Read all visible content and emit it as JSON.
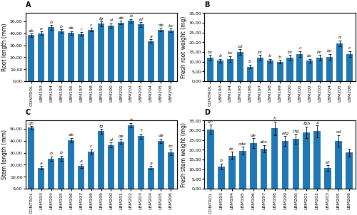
{
  "chart_data": [
    {
      "type": "bar",
      "title": "A",
      "y_label": "Root length (mm)",
      "categories": [
        "CONTROL",
        "LBM193",
        "LBM194",
        "LBM195",
        "LBM196",
        "LBM197",
        "LBM198",
        "LBM199",
        "LBM200",
        "LBM201",
        "LBM202",
        "LBM203",
        "LBM204",
        "LBM205",
        "LBM206"
      ],
      "values": [
        38.5,
        40.0,
        45.0,
        42.0,
        40.5,
        39.5,
        43.0,
        48.0,
        46.5,
        49.0,
        50.5,
        47.5,
        33.5,
        43.0,
        42.5
      ],
      "errors": [
        1.5,
        1.5,
        2.0,
        1.5,
        1.5,
        1.5,
        1.5,
        2.0,
        2.0,
        1.5,
        1.5,
        2.0,
        1.5,
        1.5,
        1.5
      ],
      "annotations": [
        "ab",
        "e",
        "b",
        "b",
        "de",
        "r",
        "c",
        "fg",
        "d",
        "de",
        "b",
        "ef",
        "a",
        "de",
        "bc"
      ],
      "ylim": [
        0,
        57
      ],
      "yticks": [
        {
          "value": 0,
          "label": "0,00"
        },
        {
          "value": 10,
          "label": "10,00"
        },
        {
          "value": 20,
          "label": "20,00"
        },
        {
          "value": 30,
          "label": "30,00"
        },
        {
          "value": 40,
          "label": "40,00"
        },
        {
          "value": 50,
          "label": "50,00"
        }
      ]
    },
    {
      "type": "bar",
      "title": "B",
      "y_label": "Fresh root weight (mg)",
      "categories": [
        "CONTROL",
        "LBM193",
        "LBM194",
        "LBM195",
        "LBM196",
        "LBM197",
        "LBM198",
        "LBM199",
        "LBM200",
        "LBM201",
        "LBM202",
        "LBM203",
        "LBM204",
        "LBM205",
        "LBM206"
      ],
      "values": [
        12.0,
        10.5,
        11.5,
        15.0,
        7.5,
        12.0,
        10.5,
        10.0,
        12.0,
        14.0,
        10.5,
        12.0,
        12.5,
        19.5,
        14.0
      ],
      "errors": [
        1.5,
        1.0,
        1.5,
        1.5,
        1.0,
        1.5,
        1.0,
        1.0,
        1.5,
        1.5,
        1.0,
        1.5,
        1.5,
        1.5,
        1.5
      ],
      "annotations": [
        "bc",
        "b",
        "bc",
        "cd",
        "b",
        "bc",
        "b",
        "b",
        "bc",
        "c",
        "bc",
        "bc",
        "bc",
        "d",
        "c"
      ],
      "ylim": [
        0,
        35
      ],
      "yticks": [
        {
          "value": 0,
          "label": "0,00"
        },
        {
          "value": 5,
          "label": "5,00"
        },
        {
          "value": 10,
          "label": "10,00"
        },
        {
          "value": 15,
          "label": "15,00"
        },
        {
          "value": 20,
          "label": "20,00"
        },
        {
          "value": 25,
          "label": "25,00"
        },
        {
          "value": 30,
          "label": "30,00"
        },
        {
          "value": 35,
          "label": "35,00"
        }
      ]
    },
    {
      "type": "bar",
      "title": "C",
      "y_label": "Stem length (mm)",
      "categories": [
        "CONTROL",
        "LBM193",
        "LBM194",
        "LBM195",
        "LBM196",
        "LBM197",
        "LBM198",
        "LBM199",
        "LBM200",
        "LBM201",
        "LBM202",
        "LBM203",
        "LBM204",
        "LBM205",
        "LBM206"
      ],
      "values": [
        51.0,
        17.5,
        25.0,
        25.5,
        40.5,
        19.0,
        31.0,
        48.0,
        36.5,
        39.5,
        53.0,
        44.0,
        17.5,
        40.0,
        30.5
      ],
      "errors": [
        1.5,
        1.5,
        2.0,
        2.0,
        2.0,
        1.5,
        2.0,
        2.0,
        2.0,
        2.0,
        2.0,
        2.0,
        1.5,
        2.0,
        2.5
      ],
      "annotations": [
        "gh",
        "a",
        "b",
        "b",
        "de",
        "a",
        "c",
        "fg",
        "d",
        "de",
        "h",
        "f",
        "a",
        "de",
        "bc"
      ],
      "ylim": [
        0,
        57
      ],
      "yticks": [
        {
          "value": 0,
          "label": "0,00"
        },
        {
          "value": 10,
          "label": "10,00"
        },
        {
          "value": 20,
          "label": "20,00"
        },
        {
          "value": 30,
          "label": "30,00"
        },
        {
          "value": 40,
          "label": "40,00"
        },
        {
          "value": 50,
          "label": "50,00"
        }
      ]
    },
    {
      "type": "bar",
      "title": "D",
      "y_label": "Fresh stem weight (mg)",
      "categories": [
        "CONTROL",
        "LBM193",
        "LBM194",
        "LBM195",
        "LBM196",
        "LBM197",
        "LBM198",
        "LBM199",
        "LBM200",
        "LBM201",
        "LBM202",
        "LBM203",
        "LBM205",
        "LBM206"
      ],
      "values": [
        30.5,
        11.5,
        17.0,
        19.5,
        23.5,
        20.5,
        31.0,
        24.5,
        25.5,
        29.0,
        29.5,
        10.5,
        24.5,
        18.5
      ],
      "errors": [
        2.5,
        1.5,
        2.0,
        2.0,
        2.5,
        2.0,
        3.5,
        2.5,
        2.5,
        3.0,
        3.0,
        1.5,
        3.0,
        2.0
      ],
      "annotations": [
        "gh",
        "b",
        "bc",
        "cde",
        "de",
        "abc",
        "h",
        "efg",
        "cfg",
        "fgh",
        "a",
        "ef",
        "cd",
        null
      ],
      "ylim": [
        0,
        35
      ],
      "yticks": [
        {
          "value": 0,
          "label": "0,00"
        },
        {
          "value": 5,
          "label": "5,00"
        },
        {
          "value": 10,
          "label": "10,00"
        },
        {
          "value": 15,
          "label": "15,00"
        },
        {
          "value": 20,
          "label": "20,00"
        },
        {
          "value": 25,
          "label": "25,00"
        },
        {
          "value": 30,
          "label": "30,00"
        },
        {
          "value": 35,
          "label": "35,00"
        }
      ]
    }
  ]
}
